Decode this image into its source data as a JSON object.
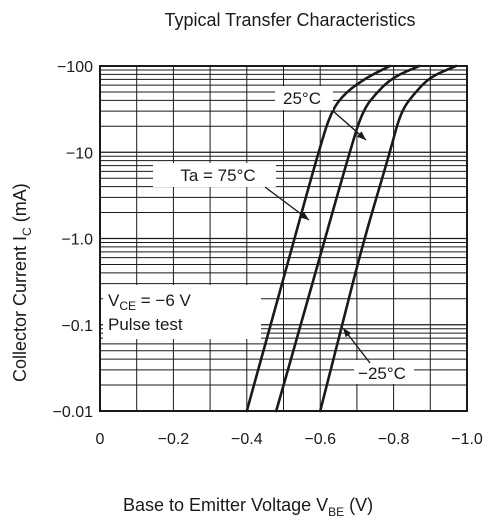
{
  "chart_data": {
    "type": "line",
    "title": "Typical Transfer Characteristics",
    "xlabel": {
      "main": "Base to Emitter Voltage  V",
      "sub": "BE",
      "unit": "  (V)"
    },
    "ylabel": {
      "main": "Collector Current  I",
      "sub": "C",
      "unit": "  (mA)"
    },
    "x_scale": "linear",
    "y_scale": "log",
    "xlim": [
      0,
      -1.0
    ],
    "ylim": [
      -0.01,
      -100
    ],
    "x_ticks": [
      0,
      -0.2,
      -0.4,
      -0.6,
      -0.8,
      -1.0
    ],
    "x_tick_labels": [
      "0",
      "−0.2",
      "−0.4",
      "−0.6",
      "−0.8",
      "−1.0"
    ],
    "y_ticks": [
      -0.01,
      -0.1,
      -1.0,
      -10,
      -100
    ],
    "y_tick_labels": [
      "−0.01",
      "−0.1",
      "−1.0",
      "−10",
      "−100"
    ],
    "grid": true,
    "series": [
      {
        "name": "Ta = 75°C",
        "x": [
          -0.4,
          -0.465,
          -0.53,
          -0.595,
          -0.63,
          -0.67,
          -0.73,
          -0.79
        ],
        "y": [
          -0.01,
          -0.1,
          -1.0,
          -10,
          -30,
          -50,
          -75,
          -100
        ]
      },
      {
        "name": "25°C",
        "x": [
          -0.48,
          -0.547,
          -0.613,
          -0.68,
          -0.715,
          -0.755,
          -0.8,
          -0.87
        ],
        "y": [
          -0.01,
          -0.1,
          -1.0,
          -10,
          -30,
          -50,
          -75,
          -100
        ]
      },
      {
        "name": "−25°C",
        "x": [
          -0.6,
          -0.66,
          -0.72,
          -0.79,
          -0.82,
          -0.86,
          -0.9,
          -0.97
        ],
        "y": [
          -0.01,
          -0.1,
          -1.0,
          -10,
          -30,
          -50,
          -75,
          -100
        ]
      }
    ],
    "annotations": {
      "condition_line1_main": "V",
      "condition_line1_sub": "CE",
      "condition_line1_rest": " = −6 V",
      "condition_line2": "Pulse test"
    }
  }
}
